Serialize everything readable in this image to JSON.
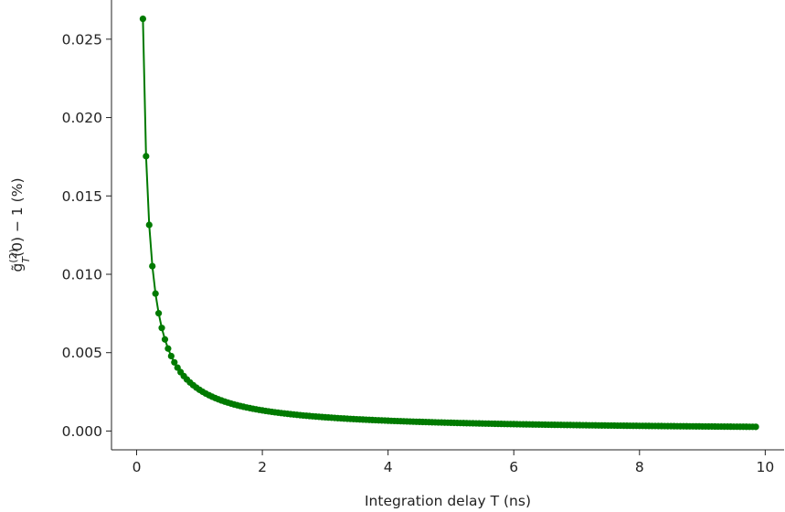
{
  "chart_data": {
    "type": "line",
    "title": "",
    "xlabel": "Integration delay T (ns)",
    "ylabel": "g̃T(2)(0) − 1 (%)",
    "ylabel_parts": {
      "base": "g̃",
      "sub": "T",
      "sup": "(2)",
      "tail": "(0) − 1 (%)"
    },
    "xlim": [
      -0.4,
      10.3
    ],
    "ylim": [
      -0.0012,
      0.0275
    ],
    "x_ticks": [
      0,
      2,
      4,
      6,
      8,
      10
    ],
    "x_tick_labels": [
      "0",
      "2",
      "4",
      "6",
      "8",
      "10"
    ],
    "y_ticks": [
      0.0,
      0.005,
      0.01,
      0.015,
      0.02,
      0.025
    ],
    "y_tick_labels": [
      "0.000",
      "0.005",
      "0.010",
      "0.015",
      "0.020",
      "0.025"
    ],
    "grid": false,
    "legend": "none",
    "marker": "circle",
    "series": [
      {
        "color": "#007a00",
        "model": "y = 0.00263 / T",
        "x_start": 0.1,
        "x_step": 0.05,
        "x_end": 9.85,
        "sample_points": [
          {
            "x": 0.1,
            "y": 0.0263
          },
          {
            "x": 0.2,
            "y": 0.0131
          },
          {
            "x": 0.3,
            "y": 0.0087
          },
          {
            "x": 0.4,
            "y": 0.0065
          },
          {
            "x": 0.5,
            "y": 0.0052
          },
          {
            "x": 1.0,
            "y": 0.0026
          },
          {
            "x": 2.0,
            "y": 0.0013
          },
          {
            "x": 4.0,
            "y": 0.0007
          },
          {
            "x": 6.0,
            "y": 0.0004
          },
          {
            "x": 8.0,
            "y": 0.0003
          },
          {
            "x": 9.85,
            "y": 0.0003
          }
        ]
      }
    ]
  }
}
